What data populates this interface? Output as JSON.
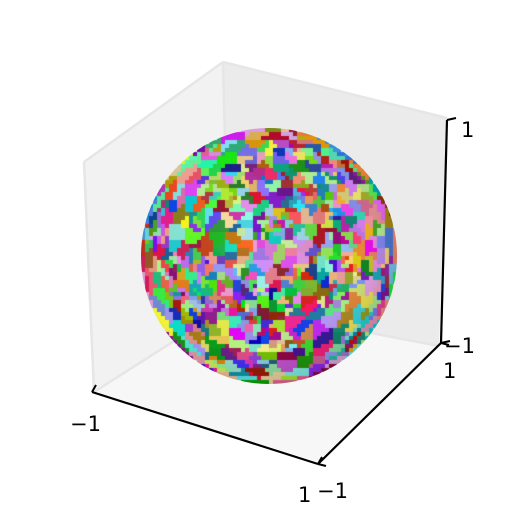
{
  "chart_data": {
    "type": "scatter",
    "subtype": "3d-surface-voronoi-sphere",
    "title": "",
    "xlabel": "",
    "ylabel": "",
    "zlabel": "",
    "xlim": [
      -1,
      1
    ],
    "ylim": [
      -1,
      1
    ],
    "zlim": [
      -1,
      1
    ],
    "grid": false,
    "legend": "none",
    "sphere": {
      "center": [
        0,
        0,
        0
      ],
      "radius": 1,
      "cells": 640,
      "coloring": "random-per-cell"
    },
    "ticks": {
      "x": [
        {
          "value": -1,
          "label": "−1"
        },
        {
          "value": 1,
          "label": "1"
        }
      ],
      "y": [
        {
          "value": -1,
          "label": "−1"
        },
        {
          "value": 1,
          "label": "1"
        }
      ],
      "z": [
        {
          "value": -1,
          "label": "−1"
        },
        {
          "value": 1,
          "label": "1"
        }
      ]
    },
    "pane_colors": {
      "left": "#f2f2f2",
      "right": "#ebebeb",
      "floor": "#f7f7f7"
    }
  }
}
